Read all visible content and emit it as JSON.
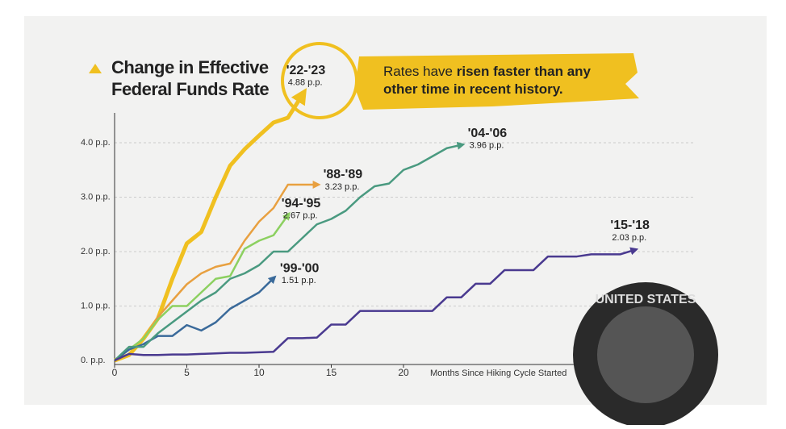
{
  "chart_data": {
    "type": "line",
    "title": "Change in Effective Federal Funds Rate",
    "annotation": [
      "Rates have ",
      "risen faster than any",
      " other time in recent history."
    ],
    "xlabel": "Months Since Hiking Cycle Started",
    "xlim": [
      0,
      41
    ],
    "ylim": [
      0,
      4.5
    ],
    "xticks": [
      0,
      5,
      10,
      15,
      20
    ],
    "yticks": [
      {
        "value": 0,
        "label": "0. p.p."
      },
      {
        "value": 1,
        "label": "1.0 p.p."
      },
      {
        "value": 2,
        "label": "2.0 p.p."
      },
      {
        "value": 3,
        "label": "3.0 p.p."
      },
      {
        "value": 4,
        "label": "4.0 p.p."
      }
    ],
    "grid": true,
    "seal_text": "UNITED STATES",
    "series": [
      {
        "name": "'22-'23",
        "end_label": "4.88 p.p.",
        "color": "#f0c020",
        "x": [
          0,
          1,
          2,
          3,
          4,
          5,
          6,
          7,
          8,
          9,
          10,
          11,
          12,
          13
        ],
        "values": [
          0,
          0.1,
          0.4,
          0.77,
          1.5,
          2.15,
          2.36,
          3.0,
          3.58,
          3.88,
          4.13,
          4.37,
          4.46,
          4.88
        ]
      },
      {
        "name": "'88-'89",
        "end_label": "3.23 p.p.",
        "color": "#e8a040",
        "x": [
          0,
          1,
          2,
          3,
          4,
          5,
          6,
          7,
          8,
          9,
          10,
          11,
          12,
          13,
          14
        ],
        "values": [
          0,
          0.2,
          0.4,
          0.8,
          1.1,
          1.4,
          1.6,
          1.72,
          1.78,
          2.2,
          2.55,
          2.8,
          3.23,
          3.23,
          3.23
        ]
      },
      {
        "name": "'94-'95",
        "end_label": "2.67 p.p.",
        "color": "#8cd060",
        "x": [
          0,
          1,
          2,
          3,
          4,
          5,
          6,
          7,
          8,
          9,
          10,
          11,
          12
        ],
        "values": [
          0,
          0.2,
          0.4,
          0.75,
          1.0,
          1.0,
          1.25,
          1.5,
          1.55,
          2.05,
          2.2,
          2.3,
          2.67
        ]
      },
      {
        "name": "'99-'00",
        "end_label": "1.51 p.p.",
        "color": "#3a6a9a",
        "x": [
          0,
          1,
          2,
          3,
          4,
          5,
          6,
          7,
          8,
          9,
          10,
          11
        ],
        "values": [
          0,
          0.2,
          0.3,
          0.45,
          0.45,
          0.65,
          0.55,
          0.7,
          0.95,
          1.1,
          1.25,
          1.51
        ]
      },
      {
        "name": "'04-'06",
        "end_label": "3.96 p.p.",
        "color": "#4a9a80",
        "x": [
          0,
          1,
          2,
          3,
          4,
          5,
          6,
          7,
          8,
          9,
          10,
          11,
          12,
          13,
          14,
          15,
          16,
          17,
          18,
          19,
          20,
          21,
          22,
          23,
          24
        ],
        "values": [
          0,
          0.25,
          0.25,
          0.5,
          0.7,
          0.9,
          1.1,
          1.25,
          1.5,
          1.6,
          1.75,
          2.0,
          2.0,
          2.25,
          2.5,
          2.6,
          2.75,
          3.0,
          3.2,
          3.25,
          3.5,
          3.6,
          3.75,
          3.9,
          3.96
        ]
      },
      {
        "name": "'15-'18",
        "end_label": "2.03 p.p.",
        "color": "#4a3a90",
        "x": [
          0,
          1,
          2,
          3,
          4,
          5,
          6,
          7,
          8,
          9,
          10,
          11,
          12,
          13,
          14,
          15,
          16,
          17,
          18,
          19,
          20,
          21,
          22,
          23,
          24,
          25,
          26,
          27,
          28,
          29,
          30,
          31,
          32,
          33,
          34,
          35,
          36
        ],
        "values": [
          0,
          0.12,
          0.1,
          0.1,
          0.11,
          0.11,
          0.12,
          0.13,
          0.14,
          0.14,
          0.15,
          0.16,
          0.41,
          0.41,
          0.42,
          0.66,
          0.66,
          0.91,
          0.91,
          0.91,
          0.91,
          0.91,
          0.91,
          1.16,
          1.16,
          1.41,
          1.41,
          1.66,
          1.66,
          1.66,
          1.91,
          1.91,
          1.91,
          1.95,
          1.95,
          1.95,
          2.03
        ]
      }
    ]
  }
}
